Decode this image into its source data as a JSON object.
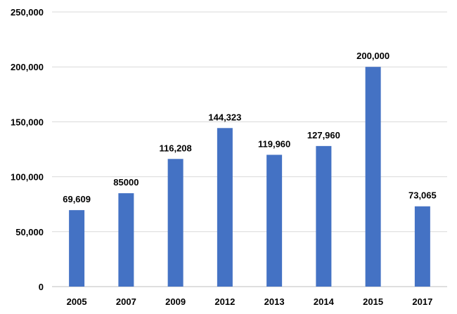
{
  "chart_data": {
    "type": "bar",
    "title": "",
    "xlabel": "",
    "ylabel": "",
    "categories": [
      "2005",
      "2007",
      "2009",
      "2012",
      "2013",
      "2014",
      "2015",
      "2017"
    ],
    "values": [
      69609,
      85000,
      116208,
      144323,
      119960,
      127960,
      200000,
      73065
    ],
    "data_labels": [
      "69,609",
      "85000",
      "116,208",
      "144,323",
      "119,960",
      "127,960",
      "200,000",
      "73,065"
    ],
    "ylim": [
      0,
      250000
    ],
    "y_ticks": [
      0,
      50000,
      100000,
      150000,
      200000,
      250000
    ],
    "y_tick_labels": [
      "0",
      "50,000",
      "100,000",
      "150,000",
      "200,000",
      "250,000"
    ],
    "grid": true,
    "legend": "none",
    "colors": {
      "bar": "#4472c4",
      "grid": "#d9d9d9",
      "axis": "#bfbfbf",
      "text": "#000000"
    }
  }
}
